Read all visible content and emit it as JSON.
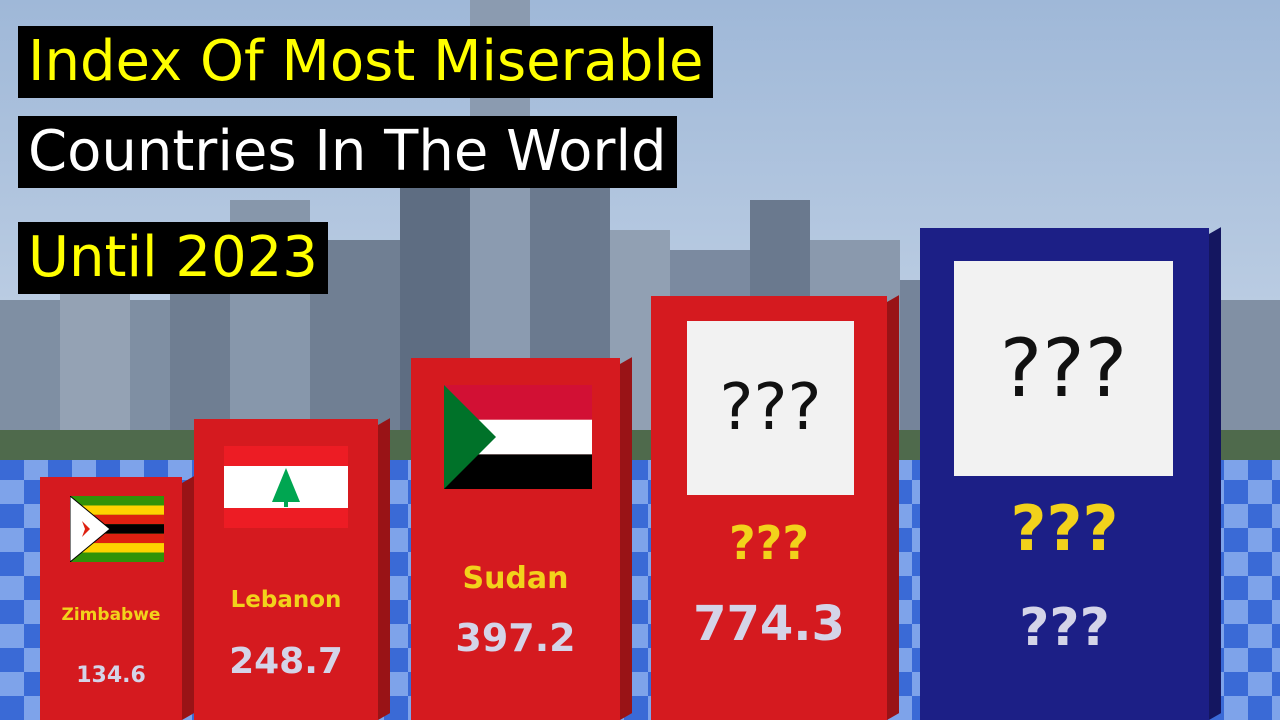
{
  "header": {
    "line1": "Index Of Most Miserable",
    "line2": "Countries In The World",
    "line3": "Until 2023"
  },
  "colors": {
    "title_bg": "#000000",
    "title_yellow": "#ffff00",
    "title_white": "#ffffff",
    "box_red": "#d51a1f",
    "box_blue": "#1c1f86",
    "label_yellow": "#f2d21b",
    "value_gray": "#d4d4e8",
    "floor_blue": "#3f6fd8"
  },
  "chart_data": {
    "type": "bar",
    "categories": [
      "Zimbabwe",
      "Lebanon",
      "Sudan",
      "???",
      "???"
    ],
    "labels_shown": [
      "Zimbabwe",
      "Lebanon",
      "Sudan",
      "???",
      "???"
    ],
    "values": [
      134.6,
      248.7,
      397.2,
      774.3,
      null
    ],
    "value_labels": [
      "134.6",
      "248.7",
      "397.2",
      "774.3",
      "???"
    ],
    "flags": [
      "zimbabwe-flag",
      "lebanon-flag",
      "sudan-flag",
      "hidden",
      "hidden"
    ],
    "hidden_flag_text": "???",
    "box_colors": [
      "#d51a1f",
      "#d51a1f",
      "#d51a1f",
      "#d51a1f",
      "#1c1f86"
    ]
  }
}
